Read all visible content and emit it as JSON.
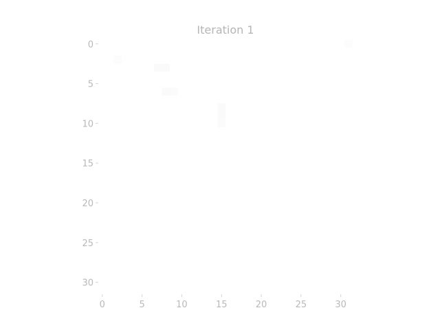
{
  "chart_data": {
    "type": "heatmap",
    "title": "Iteration 1",
    "xlabel": "",
    "ylabel": "",
    "xlim": [
      -0.5,
      31.5
    ],
    "ylim": [
      31.5,
      -0.5
    ],
    "x_ticks": [
      0,
      5,
      10,
      15,
      20,
      25,
      30
    ],
    "y_ticks": [
      0,
      5,
      10,
      15,
      20,
      25,
      30
    ],
    "x_tick_labels": [
      "0",
      "5",
      "10",
      "15",
      "20",
      "25",
      "30"
    ],
    "y_tick_labels": [
      "0",
      "5",
      "10",
      "15",
      "20",
      "25",
      "30"
    ],
    "grid": false,
    "colormap_background": "#ffffff",
    "cells": [
      {
        "row": 2,
        "col": 2,
        "value": 0.01
      },
      {
        "row": 3,
        "col": 7,
        "value": 0.02
      },
      {
        "row": 3,
        "col": 8,
        "value": 0.02
      },
      {
        "row": 6,
        "col": 8,
        "value": 0.02
      },
      {
        "row": 6,
        "col": 9,
        "value": 0.015
      },
      {
        "row": 8,
        "col": 15,
        "value": 0.02
      },
      {
        "row": 9,
        "col": 15,
        "value": 0.02
      },
      {
        "row": 10,
        "col": 15,
        "value": 0.015
      },
      {
        "row": 0,
        "col": 31,
        "value": 0.01
      }
    ]
  }
}
